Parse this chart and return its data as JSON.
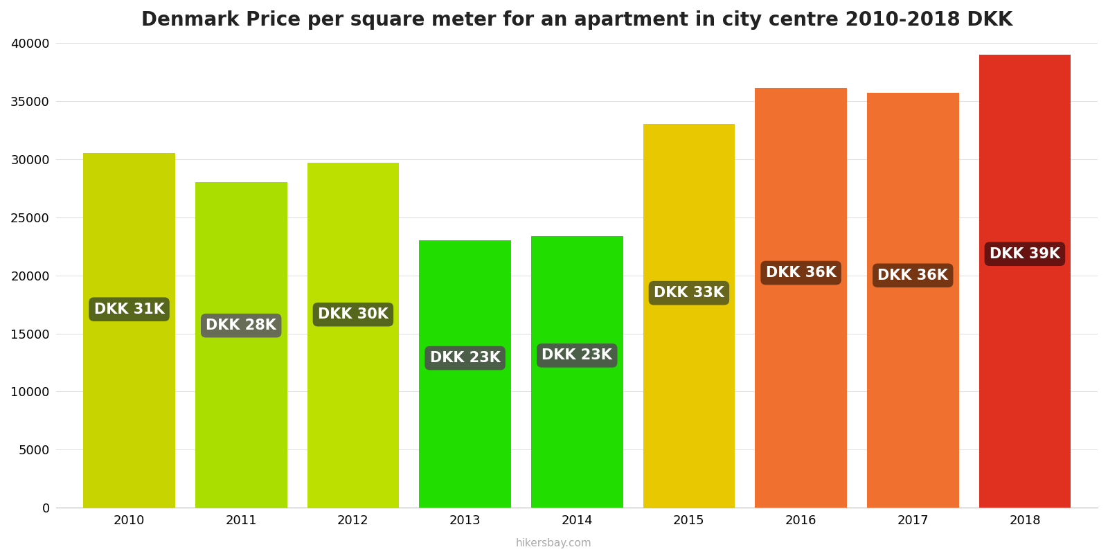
{
  "title": "Denmark Price per square meter for an apartment in city centre 2010-2018 DKK",
  "years": [
    2010,
    2011,
    2012,
    2013,
    2014,
    2015,
    2016,
    2017,
    2018
  ],
  "values": [
    30500,
    28000,
    29700,
    23000,
    23400,
    33000,
    36100,
    35700,
    39000
  ],
  "labels": [
    "DKK 31K",
    "DKK 28K",
    "DKK 30K",
    "DKK 23K",
    "DKK 23K",
    "DKK 33K",
    "DKK 36K",
    "DKK 36K",
    "DKK 39K"
  ],
  "bar_colors": [
    "#c8d400",
    "#aadd00",
    "#bce000",
    "#22dd00",
    "#22dd00",
    "#e8c800",
    "#f07030",
    "#f07030",
    "#e03020"
  ],
  "label_bg_colors": [
    "#4a5a20",
    "#606060",
    "#4a5a20",
    "#505050",
    "#505050",
    "#5a5a20",
    "#6a3010",
    "#6a3010",
    "#5a1010"
  ],
  "ylim": [
    0,
    40000
  ],
  "yticks": [
    0,
    5000,
    10000,
    15000,
    20000,
    25000,
    30000,
    35000,
    40000
  ],
  "background_color": "#ffffff",
  "label_text_color": "#ffffff",
  "watermark": "hikersbay.com",
  "title_fontsize": 20,
  "label_fontsize": 15,
  "tick_fontsize": 13,
  "bar_width": 0.82
}
